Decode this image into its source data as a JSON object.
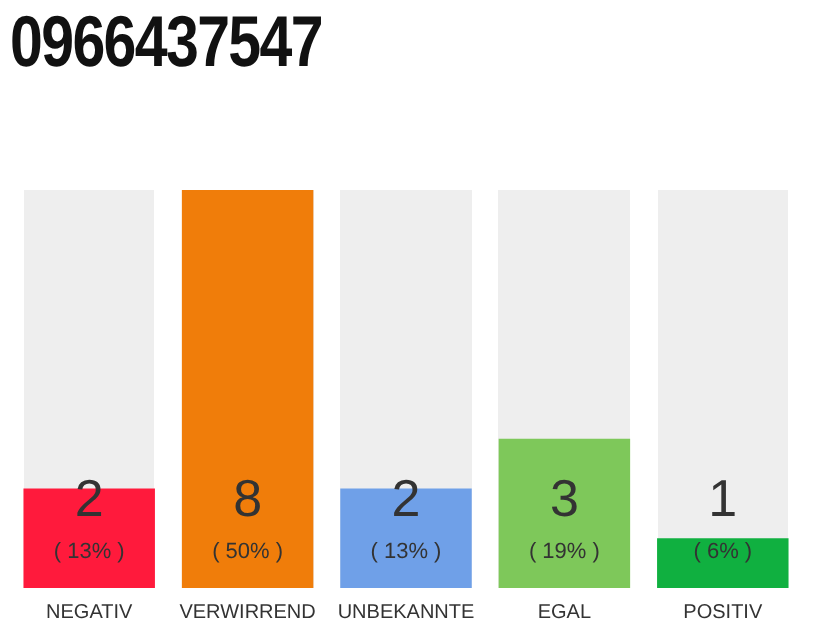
{
  "chart_data": {
    "type": "bar",
    "title": "0966437547",
    "categories": [
      "NEGATIV",
      "VERWIRREND",
      "UNBEKANNTE",
      "EGAL",
      "POSITIV"
    ],
    "values": [
      2,
      8,
      2,
      3,
      1
    ],
    "colors": [
      "#ff1a3c",
      "#f07d0a",
      "#6fa0e8",
      "#7ec85a",
      "#10b040"
    ],
    "ylim": [
      0,
      8
    ],
    "tick_labels": "x",
    "grid": false,
    "legend": false,
    "data_labels": true,
    "annotations": [
      "( 13% )",
      "( 50% )",
      "( 13% )",
      "( 19% )",
      "( 6% )"
    ]
  }
}
